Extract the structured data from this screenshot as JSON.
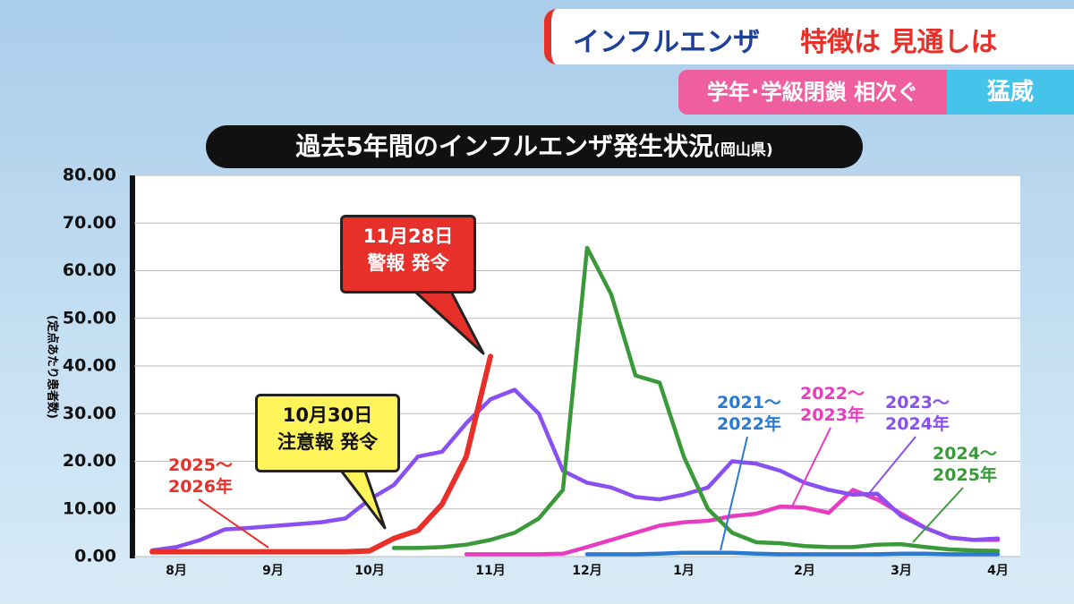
{
  "header": {
    "headline": "インフルエンザ",
    "headline_sub": "特徴は 見通しは",
    "subheadline": "学年･学級閉鎖 相次ぐ",
    "tag": "猛威"
  },
  "chart_data": {
    "type": "line",
    "title": "過去5年間のインフルエンザ発生状況",
    "subtitle": "(岡山県)",
    "y_label": "(定点あたり患者数)",
    "categories": [
      null,
      "8月",
      null,
      null,
      null,
      "9月",
      null,
      null,
      null,
      "10月",
      null,
      null,
      null,
      null,
      "11月",
      null,
      null,
      null,
      "12月",
      null,
      null,
      null,
      "1月",
      null,
      null,
      null,
      null,
      "2月",
      null,
      null,
      null,
      "3月",
      null,
      null,
      null,
      "4月"
    ],
    "ylim": [
      0,
      80
    ],
    "yticks": [
      {
        "value": 0,
        "label": "0.00"
      },
      {
        "value": 10,
        "label": "10.00"
      },
      {
        "value": 20,
        "label": "20.00"
      },
      {
        "value": 30,
        "label": "30.00"
      },
      {
        "value": 40,
        "label": "40.00"
      },
      {
        "value": 50,
        "label": "50.00"
      },
      {
        "value": 60,
        "label": "60.00"
      },
      {
        "value": 70,
        "label": "70.00"
      },
      {
        "value": 80,
        "label": "80.00"
      }
    ],
    "grid": true,
    "series": [
      {
        "name": "2021～\n2022年",
        "color": "#2a7ad0",
        "values": [
          null,
          null,
          null,
          null,
          null,
          null,
          null,
          null,
          null,
          null,
          null,
          null,
          null,
          null,
          null,
          null,
          null,
          null,
          0.5,
          0.5,
          0.5,
          0.6,
          0.8,
          0.8,
          0.8,
          0.6,
          0.5,
          0.5,
          0.5,
          0.5,
          0.5,
          0.6,
          0.6,
          0.5,
          0.5,
          0.5
        ]
      },
      {
        "name": "2022～\n2023年",
        "color": "#e83cc0",
        "values": [
          null,
          null,
          null,
          null,
          null,
          null,
          null,
          null,
          null,
          null,
          null,
          null,
          null,
          0.5,
          0.5,
          0.5,
          0.5,
          0.6,
          2,
          3.5,
          5,
          6.5,
          7.2,
          7.5,
          8.5,
          9,
          10.5,
          10.3,
          9.2,
          14,
          12,
          9,
          6,
          4,
          3.5,
          3.5
        ]
      },
      {
        "name": "2023～\n2024年",
        "color": "#8a4ff0",
        "values": [
          1.3,
          2,
          3.5,
          5.7,
          6,
          6.4,
          6.8,
          7.2,
          8,
          12,
          15,
          21,
          22,
          28,
          33,
          35,
          30,
          18,
          15.5,
          14.5,
          12.5,
          12,
          13,
          14.5,
          20,
          19.5,
          18,
          15.5,
          14,
          13,
          13.2,
          8.5,
          6,
          4,
          3.5,
          3.8
        ]
      },
      {
        "name": "2024～\n2025年",
        "color": "#3a9a3a",
        "values": [
          null,
          null,
          null,
          null,
          null,
          null,
          null,
          null,
          null,
          null,
          1.8,
          1.8,
          2,
          2.5,
          3.5,
          5,
          8,
          14,
          64.8,
          55,
          38,
          36.5,
          21,
          10,
          5,
          3,
          2.8,
          2.2,
          2,
          2,
          2.5,
          2.6,
          2,
          1.5,
          1.3,
          1.2
        ]
      },
      {
        "name": "2025～\n2026年",
        "color": "#e8302a",
        "values": [
          1,
          1,
          1,
          1,
          1,
          1,
          1,
          1,
          1,
          1.2,
          3.8,
          5.5,
          11,
          21,
          42,
          null,
          null,
          null,
          null,
          null,
          null,
          null,
          null,
          null,
          null,
          null,
          null,
          null,
          null,
          null,
          null,
          null,
          null,
          null,
          null,
          null
        ]
      }
    ],
    "annotations": [
      {
        "text": "11月28日\n警報 発令",
        "color": "#e8302a"
      },
      {
        "text": "10月30日\n注意報 発令",
        "color": "#fff45a"
      }
    ]
  }
}
